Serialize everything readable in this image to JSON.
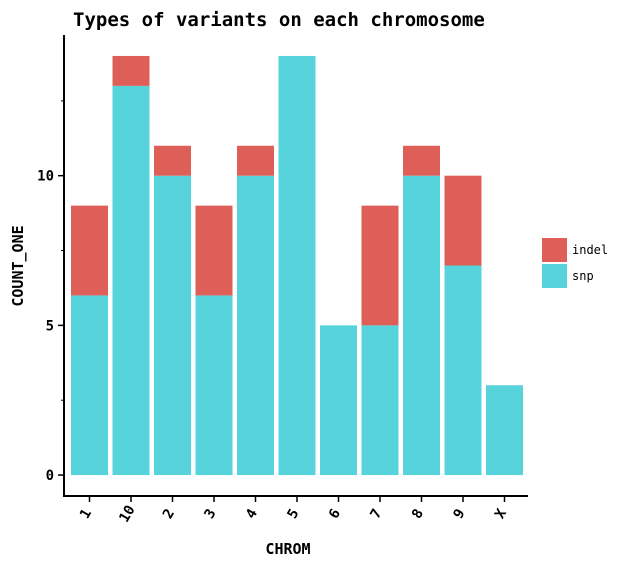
{
  "chart_data": {
    "type": "bar",
    "stacked": true,
    "title": "Types of variants on each chromosome",
    "xlabel": "CHROM",
    "ylabel": "COUNT_ONE",
    "categories": [
      "1",
      "10",
      "2",
      "3",
      "4",
      "5",
      "6",
      "7",
      "8",
      "9",
      "X"
    ],
    "series": [
      {
        "name": "snp",
        "color": "#56d3db",
        "values": [
          6,
          13,
          10,
          6,
          10,
          14,
          5,
          5,
          10,
          7,
          3
        ]
      },
      {
        "name": "indel",
        "color": "#de5f58",
        "values": [
          3,
          1,
          1,
          3,
          1,
          0,
          0,
          4,
          1,
          3,
          0
        ]
      }
    ],
    "ylim": [
      -0.7,
      14.7
    ],
    "yticks": [
      0,
      5,
      10
    ],
    "legend_order": [
      "indel",
      "snp"
    ],
    "legend_position": "right"
  }
}
